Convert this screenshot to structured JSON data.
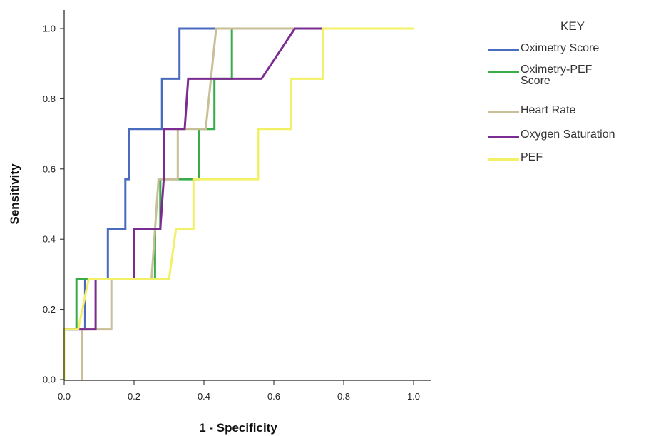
{
  "chart_data": {
    "type": "line",
    "title": "",
    "xlabel": "1 - Specificity",
    "ylabel": "Sensitivity",
    "xlim": [
      0,
      1
    ],
    "ylim": [
      0,
      1
    ],
    "x_ticks": [
      "0.0",
      "0.2",
      "0.4",
      "0.6",
      "0.8",
      "1.0"
    ],
    "y_ticks": [
      "0.0",
      "0.2",
      "0.4",
      "0.6",
      "0.8",
      "1.0"
    ],
    "grid": false,
    "legend_title": "KEY",
    "legend_position": "top-right, outside plot",
    "series": [
      {
        "name": "Oximetry Score",
        "color": "#4a6cbf",
        "points": [
          [
            0,
            0
          ],
          [
            0,
            0.143
          ],
          [
            0.03,
            0.143
          ],
          [
            0.03,
            0.143
          ],
          [
            0.06,
            0.143
          ],
          [
            0.06,
            0.286
          ],
          [
            0.08,
            0.286
          ],
          [
            0.085,
            0.286
          ],
          [
            0.125,
            0.286
          ],
          [
            0.125,
            0.429
          ],
          [
            0.175,
            0.429
          ],
          [
            0.175,
            0.571
          ],
          [
            0.185,
            0.571
          ],
          [
            0.185,
            0.714
          ],
          [
            0.28,
            0.714
          ],
          [
            0.28,
            0.857
          ],
          [
            0.31,
            0.857
          ],
          [
            0.31,
            0.857
          ],
          [
            0.33,
            0.857
          ],
          [
            0.33,
            1.0
          ],
          [
            1.0,
            1.0
          ]
        ]
      },
      {
        "name": "Oximetry-PEF\nScore",
        "color": "#3aab4a",
        "points": [
          [
            0,
            0
          ],
          [
            0,
            0.143
          ],
          [
            0.035,
            0.143
          ],
          [
            0.035,
            0.286
          ],
          [
            0.26,
            0.286
          ],
          [
            0.26,
            0.429
          ],
          [
            0.275,
            0.429
          ],
          [
            0.275,
            0.571
          ],
          [
            0.385,
            0.571
          ],
          [
            0.385,
            0.714
          ],
          [
            0.43,
            0.714
          ],
          [
            0.43,
            0.857
          ],
          [
            0.48,
            0.857
          ],
          [
            0.48,
            1.0
          ],
          [
            1.0,
            1.0
          ]
        ]
      },
      {
        "name": "Heart Rate",
        "color": "#c8bf96",
        "points": [
          [
            0.05,
            0
          ],
          [
            0.05,
            0.143
          ],
          [
            0.135,
            0.143
          ],
          [
            0.135,
            0.286
          ],
          [
            0.25,
            0.286
          ],
          [
            0.27,
            0.571
          ],
          [
            0.325,
            0.571
          ],
          [
            0.325,
            0.714
          ],
          [
            0.405,
            0.714
          ],
          [
            0.42,
            0.857
          ],
          [
            0.435,
            1.0
          ],
          [
            1.0,
            1.0
          ]
        ]
      },
      {
        "name": "Oxygen Saturation",
        "color": "#7b2c91",
        "points": [
          [
            0,
            0
          ],
          [
            0,
            0.143
          ],
          [
            0.09,
            0.143
          ],
          [
            0.09,
            0.286
          ],
          [
            0.2,
            0.286
          ],
          [
            0.2,
            0.429
          ],
          [
            0.275,
            0.429
          ],
          [
            0.285,
            0.571
          ],
          [
            0.285,
            0.714
          ],
          [
            0.345,
            0.714
          ],
          [
            0.355,
            0.857
          ],
          [
            0.565,
            0.857
          ],
          [
            0.66,
            1.0
          ],
          [
            1.0,
            1.0
          ]
        ]
      },
      {
        "name": "PEF",
        "color": "#f2f064",
        "points": [
          [
            0,
            0
          ],
          [
            0,
            0.143
          ],
          [
            0.04,
            0.143
          ],
          [
            0.07,
            0.286
          ],
          [
            0.3,
            0.286
          ],
          [
            0.32,
            0.429
          ],
          [
            0.37,
            0.429
          ],
          [
            0.37,
            0.571
          ],
          [
            0.555,
            0.571
          ],
          [
            0.555,
            0.714
          ],
          [
            0.65,
            0.714
          ],
          [
            0.65,
            0.857
          ],
          [
            0.74,
            0.857
          ],
          [
            0.74,
            1.0
          ],
          [
            1.0,
            1.0
          ]
        ]
      }
    ]
  }
}
